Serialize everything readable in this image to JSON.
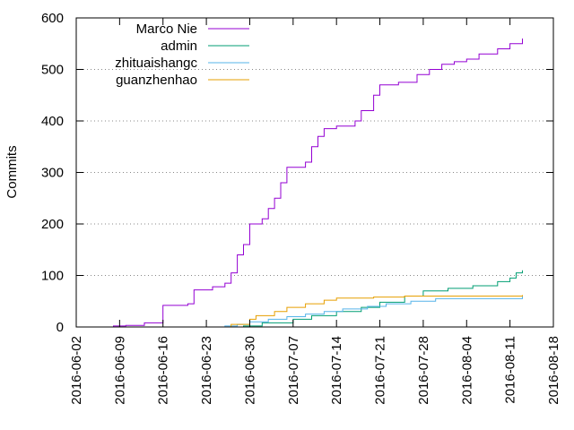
{
  "chart_data": {
    "type": "line",
    "title": "",
    "xlabel": "",
    "ylabel": "Commits",
    "ylim": [
      0,
      600
    ],
    "xlim": [
      "2016-06-02",
      "2016-08-18"
    ],
    "y_ticks": [
      "0",
      "100",
      "200",
      "300",
      "400",
      "500",
      "600"
    ],
    "x_ticks": [
      "2016-06-02",
      "2016-06-09",
      "2016-06-16",
      "2016-06-23",
      "2016-06-30",
      "2016-07-07",
      "2016-07-14",
      "2016-07-21",
      "2016-07-28",
      "2016-08-04",
      "2016-08-11",
      "2016-08-18"
    ],
    "grid": "y-dotted",
    "legend_position": "top-left",
    "step": true,
    "series": [
      {
        "name": "Marco Nie",
        "color": "#9400d3",
        "points": [
          [
            "2016-06-06",
            0
          ],
          [
            "2016-06-08",
            2
          ],
          [
            "2016-06-10",
            3
          ],
          [
            "2016-06-13",
            8
          ],
          [
            "2016-06-16",
            10
          ],
          [
            "2016-06-16",
            42
          ],
          [
            "2016-06-20",
            45
          ],
          [
            "2016-06-21",
            72
          ],
          [
            "2016-06-24",
            78
          ],
          [
            "2016-06-26",
            85
          ],
          [
            "2016-06-27",
            105
          ],
          [
            "2016-06-28",
            140
          ],
          [
            "2016-06-29",
            160
          ],
          [
            "2016-06-30",
            200
          ],
          [
            "2016-07-02",
            210
          ],
          [
            "2016-07-03",
            230
          ],
          [
            "2016-07-04",
            250
          ],
          [
            "2016-07-05",
            280
          ],
          [
            "2016-07-06",
            310
          ],
          [
            "2016-07-09",
            320
          ],
          [
            "2016-07-10",
            350
          ],
          [
            "2016-07-11",
            370
          ],
          [
            "2016-07-12",
            385
          ],
          [
            "2016-07-14",
            390
          ],
          [
            "2016-07-17",
            400
          ],
          [
            "2016-07-18",
            420
          ],
          [
            "2016-07-20",
            450
          ],
          [
            "2016-07-21",
            470
          ],
          [
            "2016-07-24",
            475
          ],
          [
            "2016-07-27",
            490
          ],
          [
            "2016-07-29",
            500
          ],
          [
            "2016-07-31",
            510
          ],
          [
            "2016-08-02",
            515
          ],
          [
            "2016-08-04",
            520
          ],
          [
            "2016-08-06",
            530
          ],
          [
            "2016-08-09",
            540
          ],
          [
            "2016-08-11",
            550
          ],
          [
            "2016-08-13",
            560
          ]
        ]
      },
      {
        "name": "admin",
        "color": "#009e73",
        "points": [
          [
            "2016-06-18",
            0
          ],
          [
            "2016-06-29",
            2
          ],
          [
            "2016-07-02",
            8
          ],
          [
            "2016-07-07",
            15
          ],
          [
            "2016-07-10",
            22
          ],
          [
            "2016-07-14",
            30
          ],
          [
            "2016-07-18",
            38
          ],
          [
            "2016-07-21",
            48
          ],
          [
            "2016-07-25",
            60
          ],
          [
            "2016-07-28",
            70
          ],
          [
            "2016-08-01",
            75
          ],
          [
            "2016-08-05",
            80
          ],
          [
            "2016-08-09",
            88
          ],
          [
            "2016-08-11",
            95
          ],
          [
            "2016-08-12",
            105
          ],
          [
            "2016-08-13",
            110
          ]
        ]
      },
      {
        "name": "zhituaishangc",
        "color": "#56b4e9",
        "points": [
          [
            "2016-06-18",
            0
          ],
          [
            "2016-06-26",
            2
          ],
          [
            "2016-06-28",
            5
          ],
          [
            "2016-06-30",
            10
          ],
          [
            "2016-07-03",
            15
          ],
          [
            "2016-07-06",
            20
          ],
          [
            "2016-07-09",
            25
          ],
          [
            "2016-07-12",
            30
          ],
          [
            "2016-07-15",
            35
          ],
          [
            "2016-07-19",
            40
          ],
          [
            "2016-07-22",
            45
          ],
          [
            "2016-07-26",
            50
          ],
          [
            "2016-07-30",
            55
          ],
          [
            "2016-08-13",
            60
          ]
        ]
      },
      {
        "name": "guanzhenhao",
        "color": "#e69f00",
        "points": [
          [
            "2016-06-21",
            0
          ],
          [
            "2016-06-27",
            5
          ],
          [
            "2016-06-30",
            15
          ],
          [
            "2016-07-01",
            22
          ],
          [
            "2016-07-04",
            30
          ],
          [
            "2016-07-06",
            38
          ],
          [
            "2016-07-09",
            45
          ],
          [
            "2016-07-12",
            52
          ],
          [
            "2016-07-14",
            56
          ],
          [
            "2016-07-20",
            58
          ],
          [
            "2016-07-25",
            60
          ],
          [
            "2016-08-13",
            62
          ]
        ]
      }
    ]
  }
}
